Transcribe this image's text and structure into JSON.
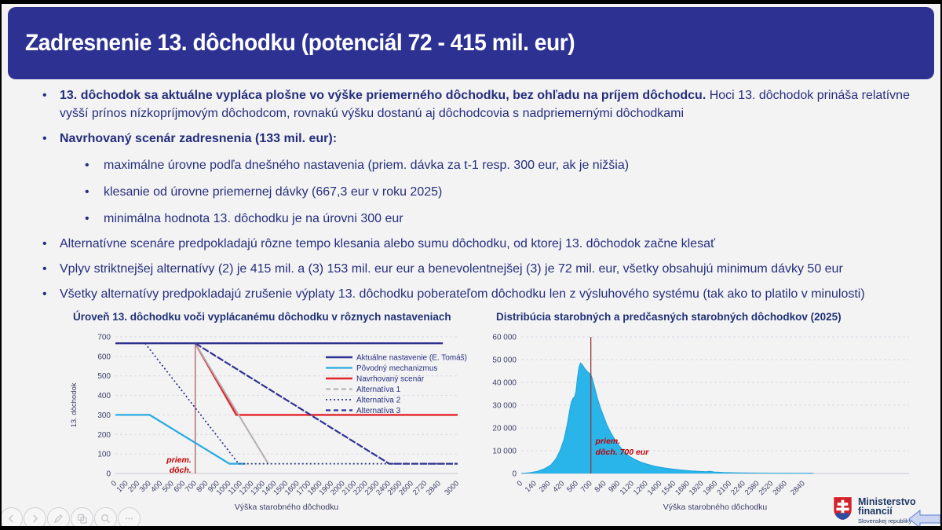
{
  "slide": {
    "title": "Zadresnenie 13. dôchodku (potenciál 72 - 415 mil. eur)",
    "bullets": [
      {
        "level": 1,
        "runs": [
          {
            "bold": true,
            "text": "13. dôchodok sa aktuálne vypláca plošne vo výške priemerného dôchodku, bez ohľadu na príjem dôchodcu."
          },
          {
            "bold": false,
            "text": " Hoci 13. dôchodok prináša relatívne vyšší prínos nízkopríjmovým dôchodcom, rovnakú výšku dostanú aj dôchodcovia s nadpriemernými dôchodkami"
          }
        ]
      },
      {
        "level": 1,
        "runs": [
          {
            "bold": true,
            "text": "Navrhovaný scenár zadresnenia (133 mil. eur):"
          }
        ]
      },
      {
        "level": 2,
        "runs": [
          {
            "bold": false,
            "text": "maximálne úrovne podľa dnešného nastavenia (priem. dávka za t-1 resp. 300 eur, ak je nižšia)"
          }
        ]
      },
      {
        "level": 2,
        "runs": [
          {
            "bold": false,
            "text": "klesanie od úrovne priemernej dávky (667,3 eur v roku 2025)"
          }
        ]
      },
      {
        "level": 2,
        "runs": [
          {
            "bold": false,
            "text": "minimálna hodnota 13. dôchodku je na úrovni 300 eur"
          }
        ]
      },
      {
        "level": 1,
        "runs": [
          {
            "bold": false,
            "text": "Alternatívne scenáre predpokladajú rôzne tempo klesania alebo sumu dôchodku, od ktorej 13. dôchodok začne klesať"
          }
        ]
      },
      {
        "level": 1,
        "runs": [
          {
            "bold": false,
            "text": "Vplyv striktnejšej alternatívy (2) je 415 mil. a (3) 153 mil. eur eur a benevolentnejšej (3) je 72 mil. eur, všetky obsahujú minimum dávky 50 eur"
          }
        ]
      },
      {
        "level": 1,
        "runs": [
          {
            "bold": false,
            "text": "Všetky alternatívy predpokladajú zrušenie výplaty 13. dôchodku poberateľom dôchodku len z výsluhového systému (tak ako to platilo v minulosti)"
          }
        ]
      }
    ]
  },
  "colors": {
    "band_navy": "#2d3292",
    "text_navy": "#252e7c",
    "line_navy": "#2e3192",
    "cyan": "#29abe2",
    "red": "#e32227",
    "gray": "#b5adad",
    "dark_red_line": "#953735",
    "annotation_red": "#c00000",
    "grid": "#d9dae3",
    "axis_text": "#3d4066"
  },
  "chart_data": [
    {
      "type": "line",
      "title": "Úroveň 13. dôchodku voči vyplácanému dôchodku v rôznych nastaveniach",
      "xlabel": "Výška starobného dôchodku",
      "ylabel": "13. dôchodok",
      "xlim": [
        0,
        3000
      ],
      "ylim": [
        0,
        700
      ],
      "grid": "horizontal-dashed",
      "legend_position": "inside-right",
      "yticks": [
        "0",
        "100",
        "200",
        "300",
        "400",
        "500",
        "600",
        "700"
      ],
      "xticks": [
        "0",
        "100",
        "200",
        "300",
        "400",
        "500",
        "600",
        "700",
        "800",
        "900",
        "1000",
        "1100",
        "1200",
        "1300",
        "1400",
        "1500",
        "1600",
        "1700",
        "1800",
        "1900",
        "2000",
        "2100",
        "2200",
        "2300",
        "2400",
        "2500",
        "2600",
        "2720",
        "2840",
        "3000"
      ],
      "vline": {
        "x": 700,
        "color": "#953735"
      },
      "annotation": {
        "lines": [
          "priem.",
          "dôch."
        ],
        "x": 700,
        "color": "#c00000"
      },
      "series": [
        {
          "name": "Aktuálne nastavenie (E. Tomáš)",
          "color": "#2e3192",
          "style": "solid",
          "plot_style": "solid",
          "width": 2.4,
          "points": [
            [
              0,
              667
            ],
            [
              2870,
              667
            ]
          ]
        },
        {
          "name": "Pôvodný mechanizmus",
          "color": "#29abe2",
          "style": "solid",
          "plot_style": "solid",
          "width": 2.2,
          "points": [
            [
              0,
              300
            ],
            [
              300,
              300
            ],
            [
              1000,
              50
            ],
            [
              1140,
              50
            ]
          ]
        },
        {
          "name": "Navrhovaný scenár",
          "color": "#e32227",
          "style": "solid",
          "plot_style": "solid",
          "width": 2.4,
          "points": [
            [
              700,
              667
            ],
            [
              1060,
              300
            ],
            [
              3000,
              300
            ]
          ]
        },
        {
          "name": "Alternatíva 1",
          "color": "#b5adad",
          "style": "dashed",
          "plot_style": "solid",
          "width": 2,
          "points": [
            [
              700,
              667
            ],
            [
              1340,
              50
            ]
          ]
        },
        {
          "name": "Alternatíva 2",
          "color": "#283180",
          "style": "dotted",
          "plot_style": "dotted",
          "width": 1.7,
          "points": [
            [
              260,
              667
            ],
            [
              1080,
              50
            ],
            [
              3000,
              50
            ]
          ]
        },
        {
          "name": "Alternatíva 3",
          "color": "#2e3192",
          "style": "dashed",
          "plot_style": "near-solid",
          "width": 2.2,
          "points": [
            [
              700,
              667
            ],
            [
              2400,
              50
            ],
            [
              3000,
              50
            ]
          ]
        }
      ]
    },
    {
      "type": "area",
      "title": "Distribúcia starobných a predčasných starobných dôchodkov (2025)",
      "xlabel": "Výška starobného dôchodku",
      "ylabel": "",
      "xlim": [
        0,
        3900
      ],
      "ylim": [
        0,
        60000
      ],
      "grid": "horizontal-dashed",
      "fill": "#29b5ea",
      "yticks": [
        "0",
        "10 000",
        "20 000",
        "30 000",
        "40 000",
        "50 000",
        "60 000"
      ],
      "xticks": [
        "0",
        "140",
        "280",
        "420",
        "560",
        "700",
        "840",
        "980",
        "1120",
        "1260",
        "1400",
        "1540",
        "1680",
        "1820",
        "1960",
        "2100",
        "2240",
        "2380",
        "2520",
        "2660",
        "2840"
      ],
      "vline": {
        "x": 700,
        "color": "#953735"
      },
      "annotation": {
        "lines": [
          "priem.",
          "dôch. 700 eur"
        ],
        "x": 700,
        "color": "#c00000"
      },
      "points": [
        [
          0,
          0
        ],
        [
          80,
          300
        ],
        [
          160,
          900
        ],
        [
          240,
          2200
        ],
        [
          300,
          3800
        ],
        [
          350,
          6500
        ],
        [
          390,
          10000
        ],
        [
          430,
          15000
        ],
        [
          460,
          21000
        ],
        [
          490,
          28500
        ],
        [
          505,
          31500
        ],
        [
          520,
          33000
        ],
        [
          535,
          33500
        ],
        [
          550,
          36000
        ],
        [
          565,
          42000
        ],
        [
          580,
          46500
        ],
        [
          595,
          48500
        ],
        [
          610,
          48000
        ],
        [
          640,
          46000
        ],
        [
          670,
          44500
        ],
        [
          700,
          43500
        ],
        [
          715,
          41500
        ],
        [
          740,
          37500
        ],
        [
          770,
          32500
        ],
        [
          800,
          28500
        ],
        [
          830,
          25000
        ],
        [
          860,
          21500
        ],
        [
          900,
          18000
        ],
        [
          940,
          15000
        ],
        [
          980,
          12500
        ],
        [
          1030,
          9800
        ],
        [
          1080,
          7800
        ],
        [
          1140,
          6200
        ],
        [
          1200,
          5000
        ],
        [
          1270,
          4000
        ],
        [
          1350,
          3100
        ],
        [
          1440,
          2400
        ],
        [
          1530,
          1900
        ],
        [
          1620,
          1500
        ],
        [
          1710,
          1150
        ],
        [
          1800,
          900
        ],
        [
          1860,
          750
        ],
        [
          1900,
          950
        ],
        [
          1940,
          650
        ],
        [
          2040,
          430
        ],
        [
          2150,
          300
        ],
        [
          2300,
          200
        ],
        [
          2500,
          130
        ],
        [
          2700,
          90
        ],
        [
          2940,
          60
        ]
      ]
    }
  ],
  "controls": {
    "buttons": [
      {
        "name": "previous-slide",
        "icon": "chevron-left-icon"
      },
      {
        "name": "next-slide",
        "icon": "chevron-right-icon"
      },
      {
        "name": "pen-tools",
        "icon": "pen-icon"
      },
      {
        "name": "see-all-slides",
        "icon": "slide-sorter-icon"
      },
      {
        "name": "zoom",
        "icon": "magnifier-icon"
      },
      {
        "name": "more-options",
        "icon": "ellipsis-icon"
      }
    ]
  },
  "footer": {
    "ministry_name": "Ministerstvo financií",
    "ministry_sub": "Slovenskej republiky"
  }
}
